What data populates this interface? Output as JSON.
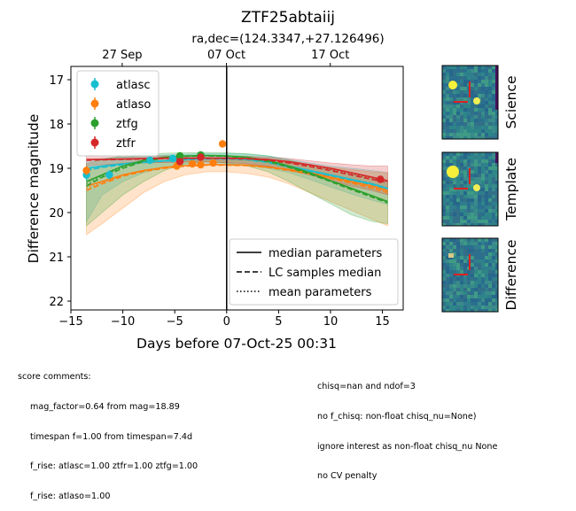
{
  "chart_data": {
    "type": "line",
    "title": "ZTF25abtaiij",
    "subtitle": "ra,dec=(124.3347,+27.126496)",
    "xlabel": "Days before 07-Oct-25 00:31",
    "ylabel": "Difference magnitude",
    "xlim": [
      -15.0,
      17.0
    ],
    "ylim": [
      22.2,
      16.7
    ],
    "y_inverted": true,
    "grid": false,
    "x_ticks": [
      -15,
      -10,
      -5,
      0,
      5,
      10,
      15
    ],
    "x_tick_labels": [
      "−15",
      "−10",
      "−5",
      "0",
      "5",
      "10",
      "15"
    ],
    "y_ticks": [
      17,
      18,
      19,
      20,
      21,
      22
    ],
    "y_tick_labels": [
      "17",
      "18",
      "19",
      "20",
      "21",
      "22"
    ],
    "top_axis_ticks": [
      {
        "x": -10.06,
        "label": "27 Sep"
      },
      {
        "x": -0.02,
        "label": "07 Oct"
      },
      {
        "x": 9.98,
        "label": "17 Oct"
      }
    ],
    "vline_x": 0,
    "legend_bands": {
      "placement": "upper-left",
      "entries": [
        "atlasc",
        "atlaso",
        "ztfg",
        "ztfr"
      ]
    },
    "legend_lines": {
      "placement": "lower-right",
      "entries": [
        {
          "label": "median parameters",
          "style": "solid"
        },
        {
          "label": "LC samples median",
          "style": "dashed"
        },
        {
          "label": "mean parameters",
          "style": "dotted"
        }
      ]
    },
    "series": [
      {
        "name": "atlasc",
        "color": "#17becf",
        "points": [
          {
            "x": -13.5,
            "y": 19.15,
            "err": 0.12
          },
          {
            "x": -11.3,
            "y": 19.15,
            "err": 0.1
          },
          {
            "x": -7.4,
            "y": 18.82,
            "err": 0.06
          },
          {
            "x": -5.2,
            "y": 18.78,
            "err": 0.05
          }
        ],
        "model_x": [
          -13.5,
          -12,
          -10,
          -8,
          -6,
          -4,
          -2,
          0,
          2,
          4,
          6,
          8,
          10,
          12,
          14,
          15.5
        ],
        "model_median": [
          19.0,
          18.95,
          18.9,
          18.86,
          18.83,
          18.8,
          18.78,
          18.78,
          18.8,
          18.85,
          18.95,
          19.05,
          19.15,
          19.25,
          19.35,
          19.45
        ],
        "model_lc_median": [
          19.05,
          18.98,
          18.92,
          18.87,
          18.84,
          18.81,
          18.79,
          18.79,
          18.81,
          18.87,
          18.97,
          19.08,
          19.18,
          19.28,
          19.38,
          19.48
        ],
        "band_upper": [
          18.8,
          18.78,
          18.75,
          18.72,
          18.7,
          18.68,
          18.67,
          18.67,
          18.68,
          18.72,
          18.8,
          18.88,
          18.95,
          19.0,
          19.05,
          19.1
        ],
        "band_lower": [
          20.2,
          19.6,
          19.3,
          19.1,
          18.98,
          18.92,
          18.9,
          18.9,
          18.93,
          19.0,
          19.1,
          19.25,
          19.42,
          19.58,
          19.72,
          19.82
        ]
      },
      {
        "name": "atlaso",
        "color": "#ff7f0e",
        "points": [
          {
            "x": -13.5,
            "y": 19.05,
            "err": 0.1
          },
          {
            "x": -4.8,
            "y": 18.95,
            "err": 0.05
          },
          {
            "x": -3.3,
            "y": 18.9,
            "err": 0.05
          },
          {
            "x": -2.5,
            "y": 18.92,
            "err": 0.05
          },
          {
            "x": -1.3,
            "y": 18.88,
            "err": 0.05
          },
          {
            "x": -0.4,
            "y": 18.45,
            "err": 0.08
          }
        ],
        "model_x": [
          -13.5,
          -12,
          -10,
          -8,
          -6,
          -4,
          -2,
          0,
          2,
          4,
          6,
          8,
          10,
          12,
          14,
          15.5
        ],
        "model_median": [
          19.4,
          19.3,
          19.15,
          19.05,
          18.98,
          18.94,
          18.92,
          18.92,
          18.93,
          18.97,
          19.03,
          19.1,
          19.2,
          19.3,
          19.4,
          19.5
        ],
        "model_lc_median": [
          19.5,
          19.35,
          19.18,
          19.07,
          19.0,
          18.95,
          18.93,
          18.93,
          18.94,
          18.98,
          19.05,
          19.13,
          19.23,
          19.33,
          19.45,
          19.55
        ],
        "band_upper": [
          19.0,
          18.95,
          18.88,
          18.85,
          18.84,
          18.83,
          18.82,
          18.82,
          18.83,
          18.85,
          18.88,
          18.93,
          18.98,
          19.03,
          19.08,
          19.1
        ],
        "band_lower": [
          20.5,
          20.25,
          19.9,
          19.55,
          19.3,
          19.15,
          19.08,
          19.08,
          19.12,
          19.2,
          19.35,
          19.55,
          19.75,
          19.95,
          20.15,
          20.3
        ]
      },
      {
        "name": "ztfg",
        "color": "#2ca02c",
        "points": [
          {
            "x": -4.5,
            "y": 18.72,
            "err": 0.04
          },
          {
            "x": -2.5,
            "y": 18.7,
            "err": 0.04
          }
        ],
        "model_x": [
          -13.5,
          -12,
          -10,
          -8,
          -6,
          -4,
          -2,
          0,
          2,
          4,
          6,
          8,
          10,
          12,
          14,
          15.5
        ],
        "model_median": [
          19.3,
          19.15,
          18.95,
          18.82,
          18.75,
          18.72,
          18.71,
          18.72,
          18.75,
          18.82,
          18.95,
          19.1,
          19.28,
          19.45,
          19.62,
          19.75
        ],
        "model_lc_median": [
          19.4,
          19.2,
          19.0,
          18.85,
          18.77,
          18.73,
          18.72,
          18.73,
          18.77,
          18.85,
          18.98,
          19.13,
          19.3,
          19.48,
          19.65,
          19.78
        ],
        "band_upper": [
          18.9,
          18.8,
          18.72,
          18.68,
          18.66,
          18.65,
          18.64,
          18.65,
          18.67,
          18.72,
          18.82,
          18.92,
          19.02,
          19.1,
          19.2,
          19.28
        ],
        "band_lower": [
          20.3,
          20.0,
          19.6,
          19.3,
          19.05,
          18.9,
          18.85,
          18.88,
          18.95,
          19.08,
          19.3,
          19.55,
          19.8,
          20.05,
          20.2,
          20.25
        ]
      },
      {
        "name": "ztfr",
        "color": "#d62728",
        "points": [
          {
            "x": -4.5,
            "y": 18.85,
            "err": 0.04
          },
          {
            "x": -2.5,
            "y": 18.75,
            "err": 0.04
          },
          {
            "x": 14.8,
            "y": 19.25,
            "err": 0.05
          }
        ],
        "model_x": [
          -13.5,
          -12,
          -10,
          -8,
          -6,
          -4,
          -2,
          0,
          2,
          4,
          6,
          8,
          10,
          12,
          14,
          15.5
        ],
        "model_median": [
          18.8,
          18.8,
          18.79,
          18.78,
          18.77,
          18.77,
          18.77,
          18.77,
          18.78,
          18.8,
          18.85,
          18.92,
          19.0,
          19.1,
          19.2,
          19.28
        ],
        "model_lc_median": [
          18.82,
          18.81,
          18.8,
          18.79,
          18.78,
          18.78,
          18.78,
          18.78,
          18.79,
          18.82,
          18.88,
          18.96,
          19.05,
          19.15,
          19.25,
          19.32
        ],
        "band_upper": [
          18.7,
          18.72,
          18.72,
          18.72,
          18.72,
          18.72,
          18.72,
          18.72,
          18.73,
          18.75,
          18.78,
          18.83,
          18.88,
          18.92,
          18.95,
          18.95
        ],
        "band_lower": [
          18.95,
          18.92,
          18.9,
          18.88,
          18.87,
          18.86,
          18.86,
          18.87,
          18.9,
          18.95,
          19.05,
          19.15,
          19.28,
          19.4,
          19.5,
          19.6
        ]
      }
    ]
  },
  "stamps": [
    {
      "label": "Science"
    },
    {
      "label": "Template"
    },
    {
      "label": "Difference"
    }
  ],
  "comments": {
    "header": "score comments:",
    "left_lines": [
      "mag_factor=0.64 from mag=18.89",
      "timespan f=1.00 from timespan=7.4d",
      "f_rise: atlasc=1.00 ztfr=1.00 ztfg=1.00",
      "f_rise: atlaso=1.00"
    ],
    "right_lines": [
      "chisq=nan and ndof=3",
      "no f_chisq: non-float chisq_nu=None)",
      "ignore interest as non-float chisq_nu None",
      "no CV penalty"
    ]
  }
}
